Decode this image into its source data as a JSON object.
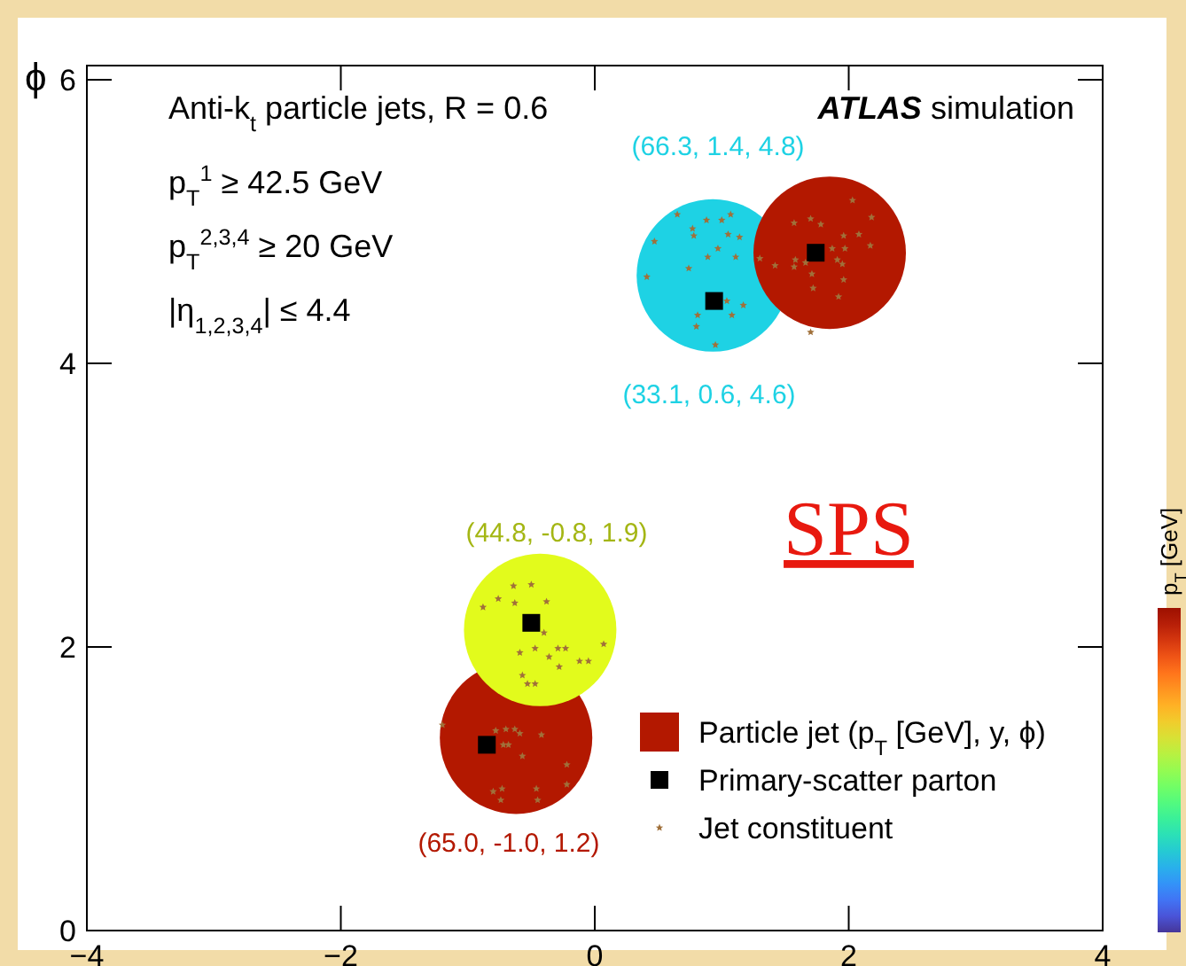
{
  "chart_data": {
    "type": "scatter",
    "title": "ATLAS simulation",
    "ylabel": "ϕ",
    "clabel": "p$_{T}$ [GeV]",
    "xlim": [
      -4,
      4
    ],
    "xticks": [
      -4,
      -2,
      0,
      2,
      4
    ],
    "ylim": [
      0,
      6.1
    ],
    "yticks": [
      0,
      2,
      4,
      6
    ],
    "grid": false,
    "legend": "bottom right",
    "annotations": [
      "(66.3, 1.4, 4.8)",
      "(33.1, 0.6, 4.6)",
      "(44.8, -0.8, 1.9)",
      "(65.0, -1.0, 1.2)",
      "Anti-k$_{t}$ particle jets, R = 0.6",
      "p$_{T}$$^{1}$ ≥ 42.5 GeV",
      "p$_{T}$$^{2,3,4}$ ≥ 20 GeV",
      "|η$_{1,2,3,4}$| ≤ 4.4",
      "SPS"
    ],
    "series": [
      {
        "name": "Particle jet (p$_{T}$ [GeV], y, ϕ)",
        "type": "bubble",
        "color": "#b31800",
        "x": [
          0.93,
          1.85,
          -0.62,
          -0.43
        ],
        "values": [
          4.62,
          4.78,
          1.36,
          2.12
        ],
        "sizes": [
          1,
          1,
          1,
          1
        ],
        "colors": [
          "#1ed2e4",
          "#b31800",
          "#b31800",
          "#e2fb1c"
        ]
      },
      {
        "name": "Primary-scatter parton",
        "marker": "square",
        "color": "#000000",
        "x": [
          1.74,
          0.94,
          -0.5,
          -0.85
        ],
        "values": [
          4.78,
          4.44,
          2.17,
          1.31
        ]
      },
      {
        "name": "Jet constituent",
        "marker": "star",
        "color": "#a0703a",
        "x": [
          2.03,
          2.18,
          1.7,
          1.57,
          1.78,
          1.96,
          2.08,
          2.17,
          1.87,
          1.97,
          1.3,
          1.42,
          1.58,
          1.66,
          1.91,
          1.95,
          1.57,
          1.71,
          1.96,
          1.72,
          1.92,
          1.7,
          0.65,
          0.88,
          1.0,
          1.07,
          0.77,
          0.78,
          1.05,
          1.14,
          0.47,
          0.97,
          0.89,
          1.11,
          0.74,
          0.41,
          1.04,
          1.17,
          0.81,
          1.08,
          0.8,
          0.95,
          -0.64,
          -0.5,
          -0.76,
          -0.63,
          -0.38,
          -0.88,
          -0.4,
          -0.59,
          -0.47,
          -0.29,
          -0.23,
          0.07,
          -0.36,
          -0.12,
          -0.05,
          -0.28,
          -0.57,
          -0.53,
          -0.47,
          -1.2,
          -0.78,
          -0.7,
          -0.63,
          -0.59,
          -0.72,
          -0.68,
          -0.42,
          -0.57,
          -0.22,
          -0.22,
          -0.73,
          -0.8,
          -0.46,
          -0.45,
          -0.74
        ],
        "values": [
          5.15,
          5.03,
          5.02,
          4.99,
          4.98,
          4.9,
          4.91,
          4.83,
          4.81,
          4.81,
          4.74,
          4.69,
          4.73,
          4.71,
          4.73,
          4.7,
          4.68,
          4.63,
          4.59,
          4.53,
          4.47,
          4.22,
          5.05,
          5.01,
          5.01,
          5.05,
          4.95,
          4.9,
          4.91,
          4.89,
          4.86,
          4.81,
          4.75,
          4.75,
          4.67,
          4.61,
          4.44,
          4.41,
          4.34,
          4.34,
          4.26,
          4.13,
          2.43,
          2.44,
          2.34,
          2.31,
          2.32,
          2.28,
          2.1,
          1.96,
          1.99,
          1.99,
          1.99,
          2.02,
          1.93,
          1.9,
          1.9,
          1.86,
          1.8,
          1.74,
          1.74,
          1.45,
          1.41,
          1.42,
          1.42,
          1.39,
          1.31,
          1.31,
          1.38,
          1.23,
          1.17,
          1.03,
          1.0,
          0.98,
          1.0,
          0.92,
          0.92
        ]
      }
    ]
  }
}
